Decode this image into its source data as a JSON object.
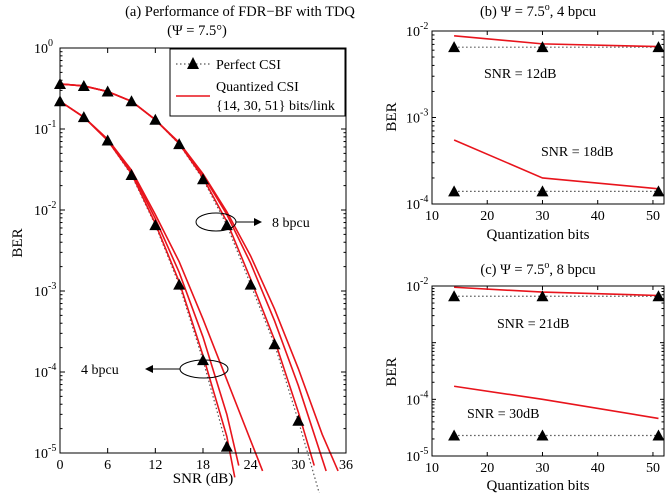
{
  "chart_data": [
    {
      "id": "a",
      "type": "line",
      "title_lines": [
        "(a) Performance of FDR−BF with TDQ",
        "(Ψ = 7.5°)"
      ],
      "xlabel": "SNR (dB)",
      "ylabel": "BER",
      "xlim": [
        0,
        36
      ],
      "ylim": [
        1e-05,
        1
      ],
      "yscale": "log",
      "xticks": [
        0,
        6,
        12,
        18,
        24,
        30,
        36
      ],
      "xtick_labels": [
        "0",
        "6",
        "12",
        "18",
        "24",
        "30",
        "36"
      ],
      "yticks": [
        1,
        0.1,
        0.01,
        0.001,
        0.0001,
        1e-05
      ],
      "ytick_labels": [
        {
          "base": "10",
          "exp": "0"
        },
        {
          "base": "10",
          "exp": "-1"
        },
        {
          "base": "10",
          "exp": "-2"
        },
        {
          "base": "10",
          "exp": "-3"
        },
        {
          "base": "10",
          "exp": "-4"
        },
        {
          "base": "10",
          "exp": "-5"
        }
      ],
      "legend": {
        "position": "top-right",
        "entries": [
          "Perfect CSI",
          "Quantized CSI",
          "{14, 30, 51} bits/link"
        ]
      },
      "annotations": [
        "8 bpcu",
        "4 bpcu"
      ],
      "series": [
        {
          "name": "Perfect CSI",
          "group": "4 bpcu",
          "style": "perfect",
          "x": [
            0,
            3,
            6,
            9,
            12,
            15,
            18,
            21
          ],
          "y": [
            0.22,
            0.14,
            0.072,
            0.027,
            0.0065,
            0.0012,
            0.00014,
            1.2e-05
          ]
        },
        {
          "name": "Perfect CSI",
          "group": "8 bpcu",
          "style": "perfect",
          "x": [
            0,
            3,
            6,
            9,
            12,
            15,
            18,
            21,
            24,
            27,
            30,
            33
          ],
          "y": [
            0.36,
            0.34,
            0.29,
            0.22,
            0.13,
            0.065,
            0.024,
            0.0065,
            0.0012,
            0.00022,
            2.5e-05,
            2.4e-06
          ]
        },
        {
          "name": "Quantized CSI",
          "group": "4 bpcu",
          "style": "quant",
          "x": [
            0,
            3,
            6,
            9,
            12,
            15,
            18,
            21,
            22
          ],
          "y": [
            0.22,
            0.14,
            0.072,
            0.028,
            0.0068,
            0.0013,
            0.00016,
            1.6e-05,
            5e-06
          ]
        },
        {
          "name": "Quantized CSI",
          "group": "4 bpcu",
          "style": "quant",
          "x": [
            0,
            3,
            6,
            9,
            12,
            15,
            18,
            21,
            22.5
          ],
          "y": [
            0.22,
            0.14,
            0.074,
            0.03,
            0.0078,
            0.0017,
            0.00027,
            3e-05,
            7e-06
          ]
        },
        {
          "name": "Quantized CSI",
          "group": "4 bpcu",
          "style": "quant",
          "x": [
            0,
            3,
            6,
            9,
            12,
            15,
            18,
            21,
            25.5
          ],
          "y": [
            0.22,
            0.14,
            0.075,
            0.031,
            0.0088,
            0.0023,
            0.00045,
            8e-05,
            6e-06
          ]
        },
        {
          "name": "Quantized CSI",
          "group": "8 bpcu",
          "style": "quant",
          "x": [
            0,
            3,
            6,
            9,
            12,
            15,
            18,
            21,
            24,
            27,
            30,
            32
          ],
          "y": [
            0.36,
            0.34,
            0.29,
            0.22,
            0.13,
            0.066,
            0.025,
            0.0072,
            0.0014,
            0.00025,
            3.2e-05,
            7e-06
          ]
        },
        {
          "name": "Quantized CSI",
          "group": "8 bpcu",
          "style": "quant",
          "x": [
            0,
            3,
            6,
            9,
            12,
            15,
            18,
            21,
            24,
            27,
            30,
            33.5
          ],
          "y": [
            0.36,
            0.34,
            0.29,
            0.22,
            0.13,
            0.067,
            0.027,
            0.0088,
            0.0022,
            0.00043,
            6.8e-05,
            6e-06
          ]
        },
        {
          "name": "Quantized CSI",
          "group": "8 bpcu",
          "style": "quant",
          "x": [
            0,
            3,
            6,
            9,
            12,
            15,
            18,
            21,
            24,
            27,
            30,
            33,
            35
          ],
          "y": [
            0.36,
            0.34,
            0.29,
            0.22,
            0.13,
            0.068,
            0.028,
            0.0095,
            0.0027,
            0.0006,
            0.00011,
            1.7e-05,
            6e-06
          ]
        }
      ]
    },
    {
      "id": "b",
      "type": "line",
      "title": "(b) Ψ = 7.5°, 4 bpcu",
      "title_parts": {
        "prefix": "(b) Ψ = 7.5",
        "sup": "o",
        "suffix": ", 4 bpcu"
      },
      "xlabel": "Quantization bits",
      "ylabel": "BER",
      "xlim": [
        10,
        52
      ],
      "ylim": [
        0.0001,
        0.01
      ],
      "yscale": "log",
      "xticks": [
        10,
        20,
        30,
        40,
        50
      ],
      "xtick_labels": [
        "10",
        "20",
        "30",
        "40",
        "50"
      ],
      "yticks": [
        0.01,
        0.001,
        0.0001
      ],
      "ytick_labels": [
        {
          "base": "10",
          "exp": "-2"
        },
        {
          "base": "10",
          "exp": "-3"
        },
        {
          "base": "10",
          "exp": "-4"
        }
      ],
      "annotations": [
        "SNR = 12dB",
        "SNR = 18dB"
      ],
      "series": [
        {
          "name": "Perfect CSI",
          "group": "SNR = 12dB",
          "style": "perfect",
          "x": [
            14,
            30,
            51
          ],
          "y": [
            0.0065,
            0.0065,
            0.0065
          ]
        },
        {
          "name": "Quantized CSI",
          "group": "SNR = 12dB",
          "style": "quant",
          "x": [
            14,
            30,
            51
          ],
          "y": [
            0.0088,
            0.0071,
            0.0066
          ]
        },
        {
          "name": "Perfect CSI",
          "group": "SNR = 18dB",
          "style": "perfect",
          "x": [
            14,
            30,
            51
          ],
          "y": [
            0.00014,
            0.00014,
            0.00014
          ]
        },
        {
          "name": "Quantized CSI",
          "group": "SNR = 18dB",
          "style": "quant",
          "x": [
            14,
            30,
            51
          ],
          "y": [
            0.00055,
            0.0002,
            0.00015
          ]
        }
      ]
    },
    {
      "id": "c",
      "type": "line",
      "title": "(c) Ψ = 7.5°, 8 bpcu",
      "title_parts": {
        "prefix": "(c) Ψ = 7.5",
        "sup": "o",
        "suffix": ", 8 bpcu"
      },
      "xlabel": "Quantization bits",
      "ylabel": "BER",
      "xlim": [
        10,
        52
      ],
      "ylim": [
        1e-05,
        0.01
      ],
      "yscale": "log",
      "xticks": [
        10,
        20,
        30,
        40,
        50
      ],
      "xtick_labels": [
        "10",
        "20",
        "30",
        "40",
        "50"
      ],
      "yticks": [
        0.01,
        0.0001,
        1e-05
      ],
      "ytick_labels": [
        {
          "base": "10",
          "exp": "-2"
        },
        {
          "base": "10",
          "exp": "-4"
        },
        {
          "base": "10",
          "exp": "-5"
        }
      ],
      "annotations": [
        "SNR = 21dB",
        "SNR = 30dB"
      ],
      "series": [
        {
          "name": "Perfect CSI",
          "group": "SNR = 21dB",
          "style": "perfect",
          "x": [
            14,
            30,
            51
          ],
          "y": [
            0.0066,
            0.0066,
            0.0066
          ]
        },
        {
          "name": "Quantized CSI",
          "group": "SNR = 21dB",
          "style": "quant",
          "x": [
            14,
            30,
            51
          ],
          "y": [
            0.0095,
            0.0078,
            0.0068
          ]
        },
        {
          "name": "Perfect CSI",
          "group": "SNR = 30dB",
          "style": "perfect",
          "x": [
            14,
            30,
            51
          ],
          "y": [
            2.3e-05,
            2.3e-05,
            2.3e-05
          ]
        },
        {
          "name": "Quantized CSI",
          "group": "SNR = 30dB",
          "style": "quant",
          "x": [
            14,
            30,
            51
          ],
          "y": [
            0.00017,
            0.0001,
            4.6e-05
          ]
        }
      ]
    }
  ],
  "colors": {
    "quantized": "#e8141c",
    "perfect_line": "#555555",
    "marker": "#000000"
  }
}
